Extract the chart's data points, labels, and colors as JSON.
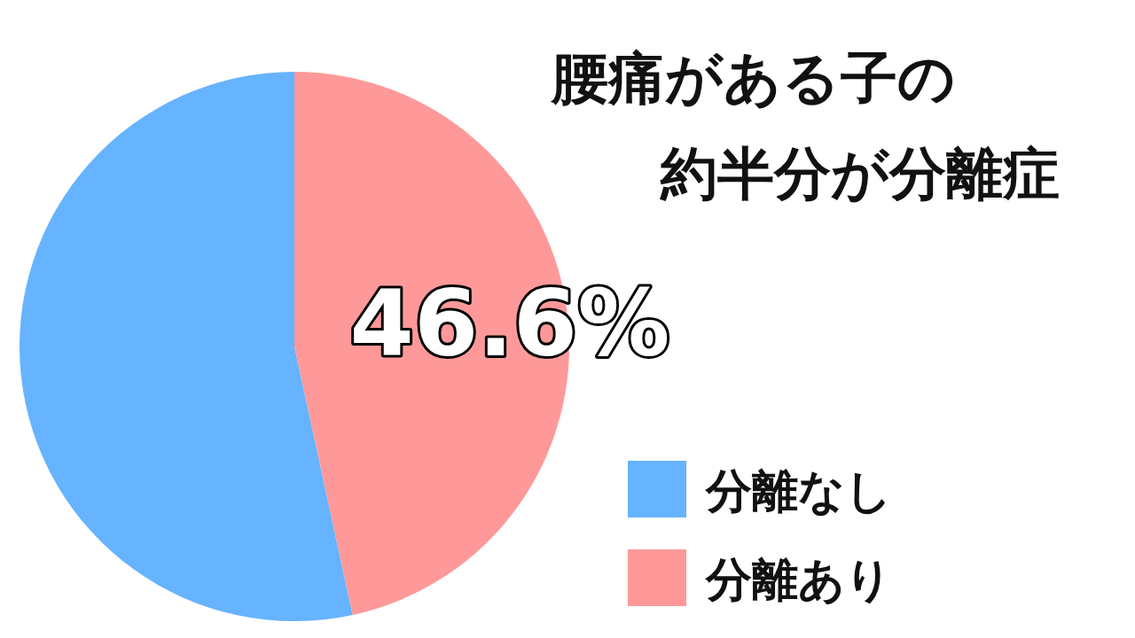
{
  "chart_data": {
    "type": "pie",
    "title": "腰痛がある子の約半分が分離症",
    "categories": [
      "分離なし",
      "分離あり"
    ],
    "values": [
      53.4,
      46.6
    ],
    "colors": [
      "#66b3ff",
      "#ff9999"
    ],
    "value_labels": [
      null,
      "46.6%"
    ],
    "legend": "bottom right"
  }
}
